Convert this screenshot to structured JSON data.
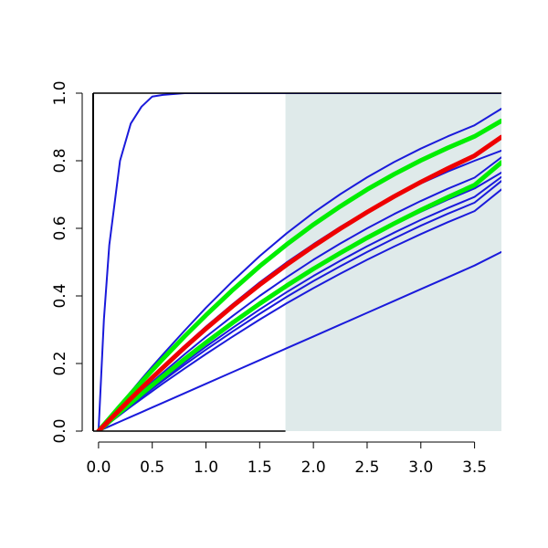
{
  "chart_data": {
    "type": "line",
    "title": "",
    "xlabel": "",
    "ylabel": "",
    "xlim": [
      -0.05,
      3.75
    ],
    "ylim": [
      0.0,
      1.0
    ],
    "grid": false,
    "legend": "none",
    "x_ticks": [
      0.0,
      0.5,
      1.0,
      1.5,
      2.0,
      2.5,
      3.0,
      3.5
    ],
    "x_tick_labels": [
      "0.0",
      "0.5",
      "1.0",
      "1.5",
      "2.0",
      "2.5",
      "3.0",
      "3.5"
    ],
    "y_ticks": [
      0.0,
      0.2,
      0.4,
      0.6,
      0.8,
      1.0
    ],
    "y_tick_labels": [
      "0.0",
      "0.2",
      "0.4",
      "0.6",
      "0.8",
      "1.0"
    ],
    "shaded_region": {
      "x_from": 1.74,
      "x_to": 3.75,
      "color": "#dfeaea"
    },
    "x": [
      0.0,
      0.05,
      0.1,
      0.2,
      0.3,
      0.4,
      0.5,
      0.6,
      0.8,
      1.0,
      1.25,
      1.5,
      1.75,
      2.0,
      2.25,
      2.5,
      2.75,
      3.0,
      3.25,
      3.5,
      3.75
    ],
    "series": [
      {
        "color": "#1a1adb",
        "width": 2,
        "values": [
          0.0,
          0.33,
          0.55,
          0.8,
          0.91,
          0.96,
          0.99,
          0.995,
          1.0,
          1.0,
          1.0,
          1.0,
          1.0,
          1.0,
          1.0,
          1.0,
          1.0,
          1.0,
          1.0,
          1.0,
          1.0
        ]
      },
      {
        "color": "#1a1adb",
        "width": 2,
        "values": [
          0.0,
          0.02,
          0.039,
          0.078,
          0.116,
          0.154,
          0.191,
          0.227,
          0.297,
          0.365,
          0.444,
          0.518,
          0.585,
          0.646,
          0.701,
          0.751,
          0.796,
          0.836,
          0.872,
          0.905,
          0.954
        ]
      },
      {
        "color": "#1a1adb",
        "width": 2,
        "values": [
          0.0,
          0.016,
          0.033,
          0.066,
          0.098,
          0.13,
          0.162,
          0.192,
          0.252,
          0.309,
          0.376,
          0.44,
          0.499,
          0.553,
          0.604,
          0.651,
          0.694,
          0.733,
          0.768,
          0.8,
          0.83
        ]
      },
      {
        "color": "#1a1adb",
        "width": 2,
        "values": [
          0.0,
          0.015,
          0.03,
          0.06,
          0.089,
          0.117,
          0.145,
          0.173,
          0.227,
          0.279,
          0.341,
          0.4,
          0.455,
          0.507,
          0.555,
          0.6,
          0.642,
          0.681,
          0.717,
          0.75,
          0.81
        ]
      },
      {
        "color": "#1a1adb",
        "width": 2,
        "values": [
          0.0,
          0.014,
          0.028,
          0.056,
          0.083,
          0.11,
          0.136,
          0.162,
          0.213,
          0.262,
          0.321,
          0.377,
          0.43,
          0.48,
          0.526,
          0.57,
          0.611,
          0.649,
          0.685,
          0.718,
          0.765
        ]
      },
      {
        "color": "#1a1adb",
        "width": 2,
        "values": [
          0.0,
          0.013,
          0.027,
          0.053,
          0.079,
          0.105,
          0.13,
          0.154,
          0.203,
          0.25,
          0.306,
          0.36,
          0.411,
          0.459,
          0.504,
          0.547,
          0.587,
          0.625,
          0.66,
          0.693,
          0.752
        ]
      },
      {
        "color": "#1a1adb",
        "width": 2,
        "values": [
          0.0,
          0.013,
          0.026,
          0.051,
          0.076,
          0.101,
          0.125,
          0.149,
          0.196,
          0.241,
          0.295,
          0.347,
          0.397,
          0.444,
          0.488,
          0.53,
          0.57,
          0.608,
          0.643,
          0.676,
          0.74
        ]
      },
      {
        "color": "#1a1adb",
        "width": 2,
        "values": [
          0.0,
          0.012,
          0.024,
          0.048,
          0.072,
          0.095,
          0.118,
          0.141,
          0.185,
          0.228,
          0.28,
          0.33,
          0.378,
          0.423,
          0.466,
          0.507,
          0.546,
          0.583,
          0.618,
          0.651,
          0.715
        ]
      },
      {
        "color": "#1a1adb",
        "width": 2,
        "values": [
          0.0,
          0.007,
          0.014,
          0.028,
          0.042,
          0.056,
          0.07,
          0.084,
          0.112,
          0.14,
          0.175,
          0.21,
          0.245,
          0.28,
          0.315,
          0.35,
          0.385,
          0.42,
          0.455,
          0.49,
          0.53
        ]
      },
      {
        "color": "#00ee00",
        "width": 5,
        "values": [
          0.0,
          0.019,
          0.037,
          0.074,
          0.11,
          0.145,
          0.18,
          0.214,
          0.28,
          0.343,
          0.418,
          0.488,
          0.552,
          0.611,
          0.665,
          0.715,
          0.76,
          0.801,
          0.838,
          0.872,
          0.918
        ]
      },
      {
        "color": "#00ee00",
        "width": 5,
        "values": [
          0.0,
          0.014,
          0.028,
          0.056,
          0.083,
          0.11,
          0.136,
          0.162,
          0.213,
          0.262,
          0.321,
          0.377,
          0.43,
          0.48,
          0.527,
          0.572,
          0.614,
          0.654,
          0.692,
          0.728,
          0.795
        ]
      },
      {
        "color": "#ee0000",
        "width": 5,
        "values": [
          0.0,
          0.016,
          0.032,
          0.064,
          0.096,
          0.127,
          0.158,
          0.188,
          0.247,
          0.303,
          0.37,
          0.433,
          0.492,
          0.547,
          0.599,
          0.648,
          0.694,
          0.737,
          0.777,
          0.815,
          0.87
        ]
      }
    ]
  }
}
